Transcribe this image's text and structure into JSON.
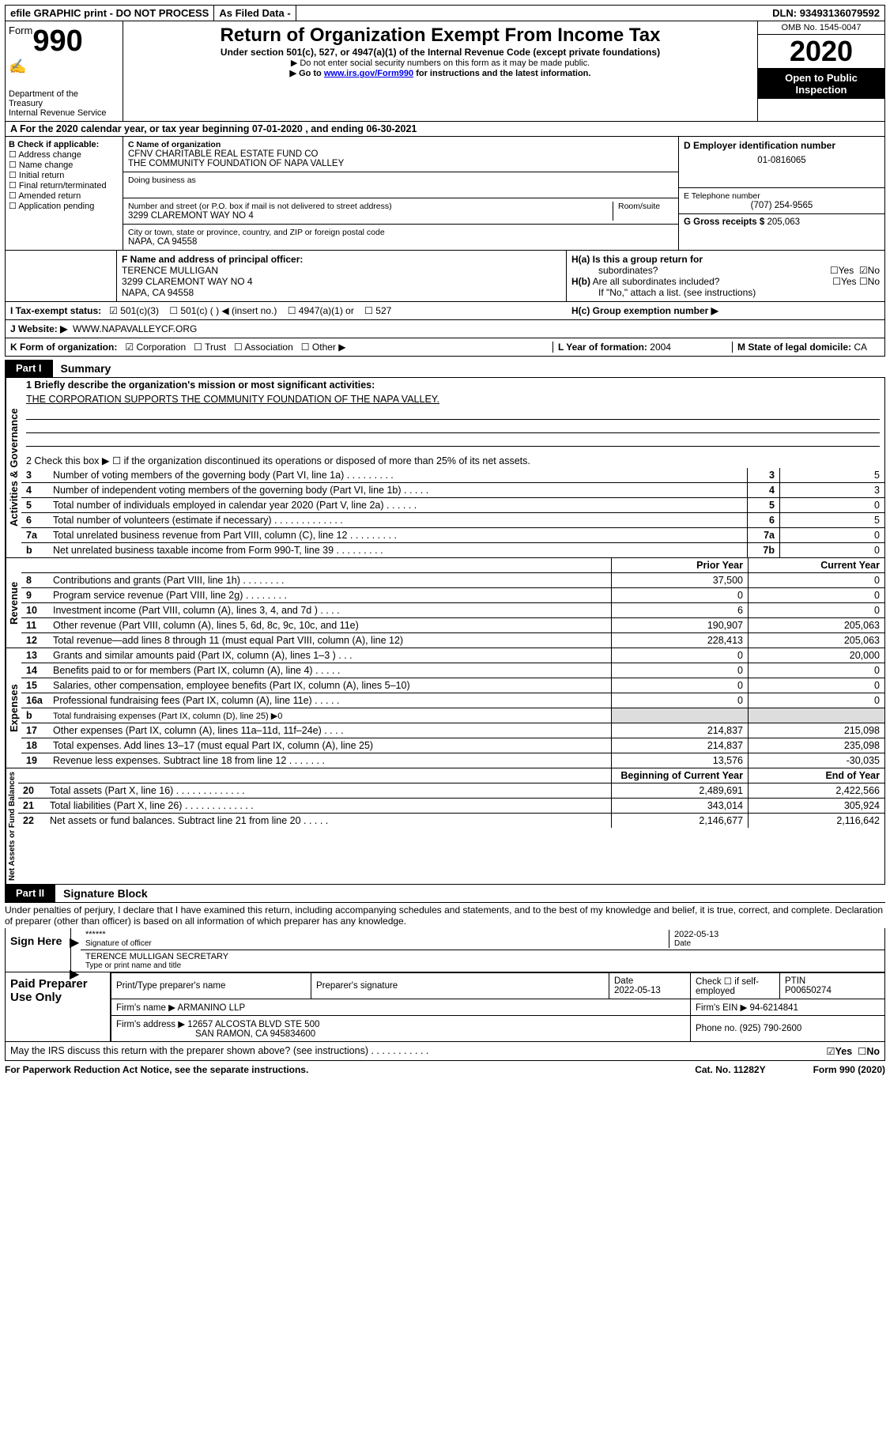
{
  "topbar": {
    "efile": "efile GRAPHIC print - DO NOT PROCESS",
    "asfiled": "As Filed Data -",
    "dln_label": "DLN:",
    "dln": "93493136079592"
  },
  "header": {
    "form_prefix": "Form",
    "form_no": "990",
    "dept1": "Department of the",
    "dept2": "Treasury",
    "dept3": "Internal Revenue Service",
    "title": "Return of Organization Exempt From Income Tax",
    "subtitle": "Under section 501(c), 527, or 4947(a)(1) of the Internal Revenue Code (except private foundations)",
    "instr1": "▶ Do not enter social security numbers on this form as it may be made public.",
    "instr2_pre": "▶ Go to ",
    "instr2_link": "www.irs.gov/Form990",
    "instr2_post": " for instructions and the latest information.",
    "omb": "OMB No. 1545-0047",
    "year": "2020",
    "inspect1": "Open to Public",
    "inspect2": "Inspection"
  },
  "a": {
    "text_pre": "A   For the 2020 calendar year, or tax year beginning ",
    "begin": "07-01-2020",
    "mid": "   , and ending ",
    "end": "06-30-2021"
  },
  "b": {
    "title": "B Check if applicable:",
    "opts": [
      "Address change",
      "Name change",
      "Initial return",
      "Final return/terminated",
      "Amended return",
      "Application pending"
    ]
  },
  "c": {
    "name_label": "C Name of organization",
    "name1": "CFNV CHARITABLE REAL ESTATE FUND CO",
    "name2": "THE COMMUNITY FOUNDATION OF NAPA VALLEY",
    "dba_label": "Doing business as",
    "addr_label": "Number and street (or P.O. box if mail is not delivered to street address)",
    "room_label": "Room/suite",
    "addr": "3299 CLAREMONT WAY NO 4",
    "city_label": "City or town, state or province, country, and ZIP or foreign postal code",
    "city": "NAPA, CA  94558"
  },
  "d": {
    "label": "D Employer identification number",
    "value": "01-0816065"
  },
  "e": {
    "label": "E Telephone number",
    "value": "(707) 254-9565"
  },
  "g": {
    "label": "G Gross receipts $",
    "value": "205,063"
  },
  "f": {
    "label": "F  Name and address of principal officer:",
    "name": "TERENCE MULLIGAN",
    "addr1": "3299 CLAREMONT WAY NO 4",
    "addr2": "NAPA, CA  94558"
  },
  "h": {
    "a": "H(a)  Is this a group return for",
    "a2": "subordinates?",
    "b": "H(b)  Are all subordinates included?",
    "b2": "If \"No,\" attach a list. (see instructions)",
    "c": "H(c)  Group exemption number ▶",
    "yes": "Yes",
    "no": "No"
  },
  "i": {
    "label": "I   Tax-exempt status:",
    "o1": "501(c)(3)",
    "o2": "501(c) (   ) ◀ (insert no.)",
    "o3": "4947(a)(1) or",
    "o4": "527"
  },
  "j": {
    "label": "J   Website: ▶",
    "value": "WWW.NAPAVALLEYCF.ORG"
  },
  "k": {
    "label": "K Form of organization:",
    "o1": "Corporation",
    "o2": "Trust",
    "o3": "Association",
    "o4": "Other ▶"
  },
  "l": {
    "label": "L Year of formation:",
    "value": "2004"
  },
  "m": {
    "label": "M State of legal domicile:",
    "value": "CA"
  },
  "part1": {
    "tab": "Part I",
    "title": "Summary"
  },
  "p1": {
    "l1_label": "1  Briefly describe the organization's mission or most significant activities:",
    "l1_text": "THE CORPORATION SUPPORTS THE COMMUNITY FOUNDATION OF THE NAPA VALLEY.",
    "l2": "2   Check this box ▶ ☐  if the organization discontinued its operations or disposed of more than 25% of its net assets.",
    "sec1_label": "Activities & Governance",
    "sec2_label": "Revenue",
    "sec3_label": "Expenses",
    "sec4_label": "Net Assets or Fund Balances",
    "rows_gov": [
      {
        "n": "3",
        "d": "Number of voting members of the governing body (Part VI, line 1a)   .     .     .     .     .     .     .     .     .",
        "box": "3",
        "v": "5"
      },
      {
        "n": "4",
        "d": "Number of independent voting members of the governing body (Part VI, line 1b)     .     .     .     .     .",
        "box": "4",
        "v": "3"
      },
      {
        "n": "5",
        "d": "Total number of individuals employed in calendar year 2020 (Part V, line 2a)   .     .     .     .     .     .",
        "box": "5",
        "v": "0"
      },
      {
        "n": "6",
        "d": "Total number of volunteers (estimate if necessary)    .     .     .     .     .     .     .     .     .     .     .     .     .",
        "box": "6",
        "v": "5"
      },
      {
        "n": "7a",
        "d": "Total unrelated business revenue from Part VIII, column (C), line 12   .     .     .     .     .     .     .     .     .",
        "box": "7a",
        "v": "0"
      },
      {
        "n": "b",
        "d": "Net unrelated business taxable income from Form 990-T, line 39    .     .     .     .     .     .     .     .     .",
        "box": "7b",
        "v": "0"
      }
    ],
    "col_prior": "Prior Year",
    "col_curr": "Current Year",
    "rows_rev": [
      {
        "n": "8",
        "d": "Contributions and grants (Part VIII, line 1h)   .     .     .     .     .     .     .     .",
        "p": "37,500",
        "c": "0"
      },
      {
        "n": "9",
        "d": "Program service revenue (Part VIII, line 2g)    .     .     .     .     .     .     .     .",
        "p": "0",
        "c": "0"
      },
      {
        "n": "10",
        "d": "Investment income (Part VIII, column (A), lines 3, 4, and 7d )    .     .     .     .",
        "p": "6",
        "c": "0"
      },
      {
        "n": "11",
        "d": "Other revenue (Part VIII, column (A), lines 5, 6d, 8c, 9c, 10c, and 11e)",
        "p": "190,907",
        "c": "205,063"
      },
      {
        "n": "12",
        "d": "Total revenue—add lines 8 through 11 (must equal Part VIII, column (A), line 12)",
        "p": "228,413",
        "c": "205,063"
      }
    ],
    "rows_exp": [
      {
        "n": "13",
        "d": "Grants and similar amounts paid (Part IX, column (A), lines 1–3 )   .     .     .",
        "p": "0",
        "c": "20,000"
      },
      {
        "n": "14",
        "d": "Benefits paid to or for members (Part IX, column (A), line 4)   .     .     .     .     .",
        "p": "0",
        "c": "0"
      },
      {
        "n": "15",
        "d": "Salaries, other compensation, employee benefits (Part IX, column (A), lines 5–10)",
        "p": "0",
        "c": "0"
      },
      {
        "n": "16a",
        "d": "Professional fundraising fees (Part IX, column (A), line 11e)   .     .     .     .     .",
        "p": "0",
        "c": "0"
      },
      {
        "n": "b",
        "d": "Total fundraising expenses (Part IX, column (D), line 25)  ▶0",
        "p": "",
        "c": "",
        "shade": true,
        "small": true
      },
      {
        "n": "17",
        "d": "Other expenses (Part IX, column (A), lines 11a–11d, 11f–24e)   .     .     .     .",
        "p": "214,837",
        "c": "215,098"
      },
      {
        "n": "18",
        "d": "Total expenses. Add lines 13–17 (must equal Part IX, column (A), line 25)",
        "p": "214,837",
        "c": "235,098"
      },
      {
        "n": "19",
        "d": "Revenue less expenses. Subtract line 18 from line 12  .     .     .     .     .     .     .",
        "p": "13,576",
        "c": "-30,035"
      }
    ],
    "col_beg": "Beginning of Current Year",
    "col_end": "End of Year",
    "rows_na": [
      {
        "n": "20",
        "d": "Total assets (Part X, line 16)   .     .     .     .     .     .     .     .     .     .     .     .     .",
        "p": "2,489,691",
        "c": "2,422,566"
      },
      {
        "n": "21",
        "d": "Total liabilities (Part X, line 26)  .     .     .     .     .     .     .     .     .     .     .     .     .",
        "p": "343,014",
        "c": "305,924"
      },
      {
        "n": "22",
        "d": "Net assets or fund balances. Subtract line 21 from line 20  .     .     .     .     .",
        "p": "2,146,677",
        "c": "2,116,642"
      }
    ]
  },
  "part2": {
    "tab": "Part II",
    "title": "Signature Block"
  },
  "sig": {
    "perjury": "Under penalties of perjury, I declare that I have examined this return, including accompanying schedules and statements, and to the best of my knowledge and belief, it is true, correct, and complete. Declaration of preparer (other than officer) is based on all information of which preparer has any knowledge.",
    "sign_here": "Sign Here",
    "stars": "******",
    "sig_officer": "Signature of officer",
    "date_label": "Date",
    "date": "2022-05-13",
    "name": "TERENCE MULLIGAN  SECRETARY",
    "name_cap": "Type or print name and title"
  },
  "prep": {
    "left": "Paid Preparer Use Only",
    "h1": "Print/Type preparer's name",
    "h2": "Preparer's signature",
    "h3": "Date",
    "h4": "Check ☐  if self-employed",
    "h5_l": "PTIN",
    "date": "2022-05-13",
    "ptin": "P00650274",
    "firm_l": "Firm's name    ▶",
    "firm": "ARMANINO LLP",
    "ein_l": "Firm's EIN ▶",
    "ein": "94-6214841",
    "addr_l": "Firm's address ▶",
    "addr1": "12657 ALCOSTA BLVD STE 500",
    "addr2": "SAN RAMON, CA  945834600",
    "phone_l": "Phone no.",
    "phone": "(925) 790-2600"
  },
  "bottom": {
    "q": "May the IRS discuss this return with the preparer shown above? (see instructions)   .     .     .     .     .     .     .     .     .     .     .",
    "yes": "Yes",
    "no": "No"
  },
  "footer": {
    "l": "For Paperwork Reduction Act Notice, see the separate instructions.",
    "c": "Cat. No. 11282Y",
    "r": "Form 990 (2020)"
  }
}
